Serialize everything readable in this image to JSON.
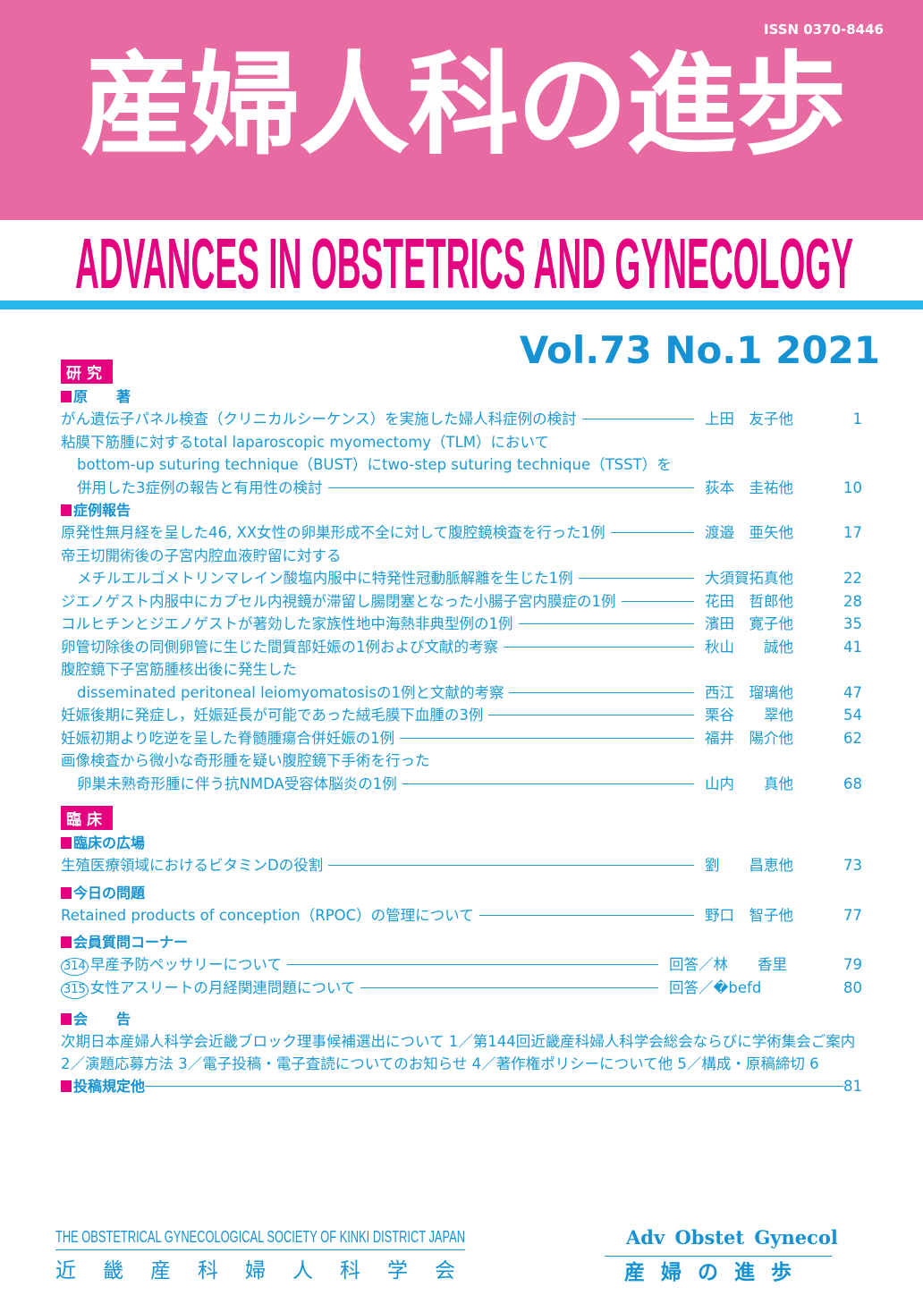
{
  "header": {
    "issn": "ISSN 0370-8446",
    "title_jp": "産婦人科の進歩",
    "title_en": "ADVANCES IN OBSTETRICS AND GYNECOLOGY",
    "volume": "Vol.73 No.1 2021"
  },
  "colors": {
    "pink": "#e86aa2",
    "magenta": "#e4007f",
    "blue": "#1a9ad6"
  },
  "research": {
    "label": "研究",
    "original": {
      "label": "原　　著",
      "entries": [
        {
          "lines": [
            "がん遺伝子パネル検査（クリニカルシーケンス）を実施した婦人科症例の検討"
          ],
          "author": "上田　友子他",
          "page": "1"
        },
        {
          "lines": [
            "粘膜下筋腫に対するtotal laparoscopic myomectomy（TLM）において",
            "bottom-up suturing technique（BUST）にtwo-step suturing technique（TSST）を",
            "併用した3症例の報告と有用性の検討"
          ],
          "author": "荻本　圭祐他",
          "page": "10"
        }
      ]
    },
    "case": {
      "label": "症例報告",
      "entries": [
        {
          "lines": [
            "原発性無月経を呈した46, XX女性の卵巣形成不全に対して腹腔鏡検査を行った1例"
          ],
          "author": "渡邉　亜矢他",
          "page": "17"
        },
        {
          "lines": [
            "帝王切開術後の子宮内腔血液貯留に対する",
            "メチルエルゴメトリンマレイン酸塩内服中に特発性冠動脈解離を生じた1例"
          ],
          "author": "大須賀拓真他",
          "page": "22"
        },
        {
          "lines": [
            "ジエノゲスト内服中にカプセル内視鏡が滞留し腸閉塞となった小腸子宮内膜症の1例"
          ],
          "author": "花田　哲郎他",
          "page": "28"
        },
        {
          "lines": [
            "コルヒチンとジエノゲストが著効した家族性地中海熱非典型例の1例"
          ],
          "author": "濱田　寛子他",
          "page": "35"
        },
        {
          "lines": [
            "卵管切除後の同側卵管に生じた間質部妊娠の1例および文献的考察"
          ],
          "author": "秋山　　誠他",
          "page": "41"
        },
        {
          "lines": [
            "腹腔鏡下子宮筋腫核出後に発生した",
            "disseminated peritoneal leiomyomatosisの1例と文献的考察"
          ],
          "author": "西江　瑠璃他",
          "page": "47"
        },
        {
          "lines": [
            "妊娠後期に発症し，妊娠延長が可能であった絨毛膜下血腫の3例"
          ],
          "author": "栗谷　　翠他",
          "page": "54"
        },
        {
          "lines": [
            "妊娠初期より吃逆を呈した脊髄腫瘍合併妊娠の1例"
          ],
          "author": "福井　陽介他",
          "page": "62"
        },
        {
          "lines": [
            "画像検査から微小な奇形腫を疑い腹腔鏡下手術を行った",
            "卵巣未熟奇形腫に伴う抗NMDA受容体脳炎の1例"
          ],
          "author": "山内　　真他",
          "page": "68"
        }
      ]
    }
  },
  "clinical": {
    "label": "臨床",
    "forum": {
      "label": "臨床の広場",
      "entries": [
        {
          "lines": [
            "生殖医療領域におけるビタミンDの役割"
          ],
          "author": "劉　　昌恵他",
          "page": "73"
        }
      ]
    },
    "today": {
      "label": "今日の問題",
      "entries": [
        {
          "lines": [
            "Retained products of conception（RPOC）の管理について"
          ],
          "author": "野口　智子他",
          "page": "77"
        }
      ]
    },
    "qa": {
      "label": "会員質問コーナー",
      "entries": [
        {
          "lines": [
            "⑶⑴⑷早産予防ペッサリーについて"
          ],
          "num": "314",
          "text": "早産予防ペッサリーについて",
          "author": "回答／林　　香里",
          "page": "79"
        },
        {
          "num": "315",
          "text": "女性アスリートの月経関連問題について",
          "author": "回答／�befd",
          "page": "80"
        }
      ]
    }
  },
  "notice": {
    "label": "会　　告",
    "text": "次期日本産婦人科学会近畿ブロック理事候補選出について 1／第144回近畿産科婦人科学会総会ならびに学術集会ご案内 2／演題応募方法 3／電子投稿・電子査読についてのお知らせ 4／著作権ポリシーについて他 5／構成・原稿締切 6"
  },
  "rules": {
    "label": "投稿規定他",
    "page": "81"
  },
  "footer": {
    "society_en": "THE OBSTETRICAL GYNECOLOGICAL SOCIETY OF KINKI DISTRICT JAPAN",
    "society_jp": "近畿産科婦人科学会",
    "abbr": "Adv  Obstet  Gynecol",
    "abbr_jp": "産婦の進歩"
  }
}
